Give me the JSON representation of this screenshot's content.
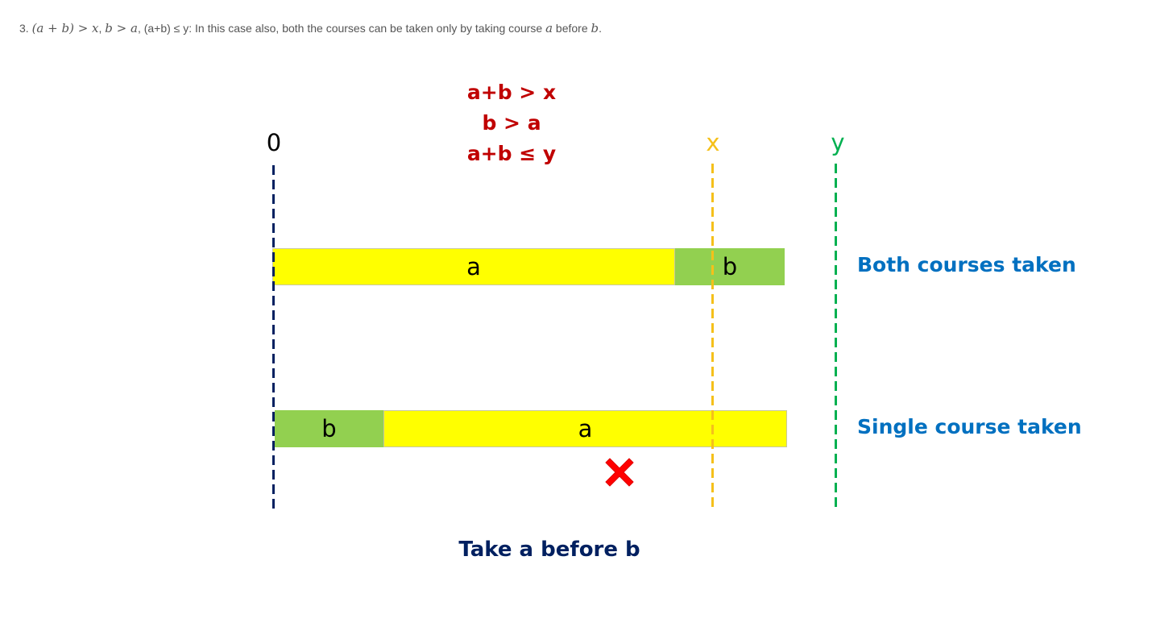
{
  "intro": {
    "number": "3.",
    "cond1": "(a + b) > x",
    "cond2": "b > a",
    "cond3_text": "(a+b) ≤ y: In this case also, both the courses can be taken only by taking course",
    "var_a": "a",
    "before_text": "before",
    "var_b": "b",
    "period": "."
  },
  "conditions": {
    "line1": "a+b > x",
    "line2": "b > a",
    "line3": "a+b ≤ y"
  },
  "axis": {
    "zero_label": "0",
    "x_label": "x",
    "y_label": "y"
  },
  "rows": {
    "both": {
      "first_label": "a",
      "second_label": "b",
      "caption": "Both courses taken"
    },
    "single": {
      "first_label": "b",
      "second_label": "a",
      "caption": "Single course taken"
    }
  },
  "caption": "Take a before b",
  "colors": {
    "course_a": "#ffff00",
    "course_b": "#92d050",
    "zero_line": "#002060",
    "x_line": "#f5c01a",
    "y_line": "#00b050",
    "conditions_text": "#c00000",
    "row_label_text": "#0070c0",
    "cross": "#ff0000"
  },
  "icons": {
    "fail_marker": "cross-mark-icon"
  }
}
